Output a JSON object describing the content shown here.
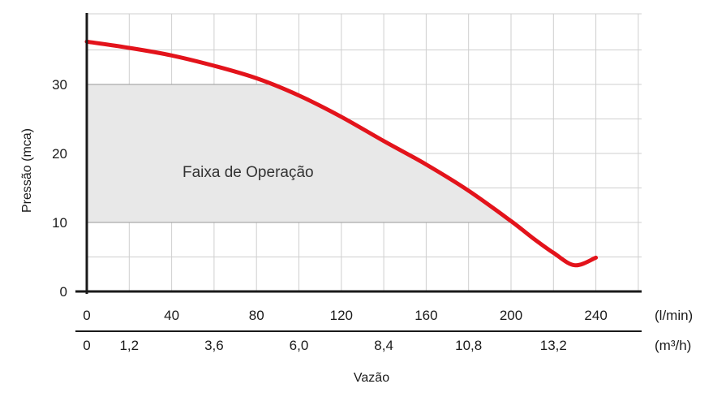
{
  "chart_data": {
    "type": "line",
    "title": "",
    "xlabel": "Vazão",
    "ylabel": "Pressão (mca)",
    "x_unit_primary": "(l/min)",
    "x_unit_secondary": "(m³/h)",
    "x_ticks_primary": [
      "0",
      "40",
      "80",
      "120",
      "160",
      "200",
      "240"
    ],
    "x_ticks_secondary": [
      "0",
      "1,2",
      "3,6",
      "6,0",
      "8,4",
      "10,8",
      "13,2"
    ],
    "y_ticks": [
      "0",
      "10",
      "20",
      "30"
    ],
    "xlim": [
      0,
      260
    ],
    "ylim": [
      0,
      40
    ],
    "grid": true,
    "series": [
      {
        "color": "#e3131b",
        "x": [
          0,
          20,
          40,
          60,
          80,
          100,
          120,
          140,
          160,
          180,
          200,
          210,
          220,
          230,
          240
        ],
        "y": [
          36.2,
          35.3,
          34.2,
          32.7,
          30.9,
          28.4,
          25.3,
          21.8,
          18.4,
          14.6,
          10.2,
          7.8,
          5.6,
          3.8,
          4.9
        ]
      }
    ],
    "operating_range": {
      "label": "Faixa de Operação",
      "y_min": 10,
      "y_max": 30,
      "color": "#e8e8e8"
    }
  }
}
